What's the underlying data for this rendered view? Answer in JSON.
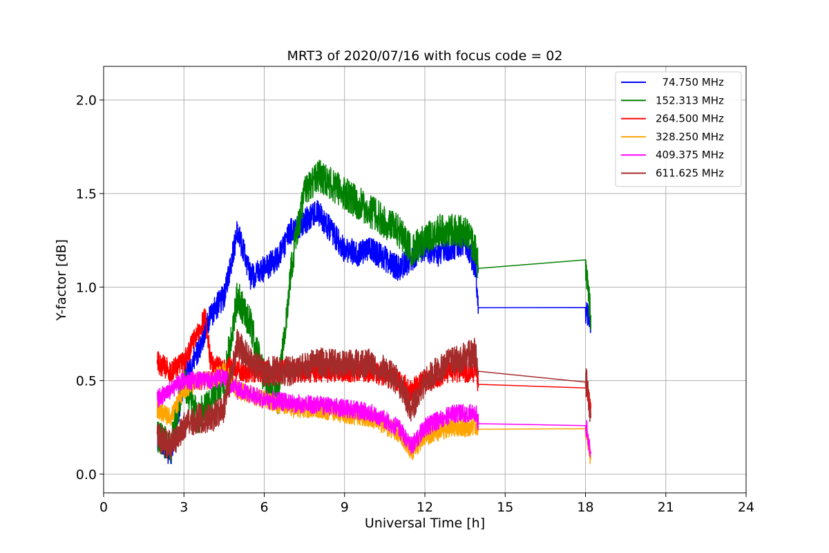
{
  "chart_data": {
    "type": "line",
    "title": "MRT3 of 2020/07/16 with focus code = 02",
    "xlabel": "Universal Time [h]",
    "ylabel": "Y-factor [dB]",
    "xlim": [
      0,
      24
    ],
    "ylim": [
      -0.1,
      2.18
    ],
    "xticks": [
      0,
      3,
      6,
      9,
      12,
      15,
      18,
      21,
      24
    ],
    "xtick_labels": [
      "0",
      "3",
      "6",
      "9",
      "12",
      "15",
      "18",
      "21",
      "24"
    ],
    "yticks": [
      0.0,
      0.5,
      1.0,
      1.5,
      2.0
    ],
    "ytick_labels": [
      "0.0",
      "0.5",
      "1.0",
      "1.5",
      "2.0"
    ],
    "grid": true,
    "legend_position": "top-right",
    "series": [
      {
        "name": "  74.750 MHz",
        "color": "#0000ff",
        "noise": 0.07,
        "x": [
          2.0,
          2.5,
          3.0,
          3.5,
          4.0,
          4.5,
          5.0,
          5.5,
          6.0,
          6.5,
          7.0,
          7.5,
          8.0,
          8.5,
          9.0,
          9.5,
          10.0,
          10.5,
          11.0,
          11.5,
          12.0,
          12.5,
          13.0,
          13.5,
          13.9,
          14.0,
          18.0,
          18.2
        ],
        "y": [
          0.2,
          0.1,
          0.5,
          0.65,
          0.85,
          0.95,
          1.3,
          1.05,
          1.1,
          1.15,
          1.3,
          1.35,
          1.4,
          1.3,
          1.2,
          1.18,
          1.2,
          1.15,
          1.1,
          1.15,
          1.2,
          1.18,
          1.2,
          1.25,
          1.1,
          0.89,
          0.87,
          0.8
        ]
      },
      {
        "name": "152.313 MHz",
        "color": "#008000",
        "noise": 0.09,
        "x": [
          2.0,
          2.5,
          3.0,
          3.5,
          4.0,
          4.5,
          5.0,
          5.5,
          6.0,
          6.5,
          7.0,
          7.5,
          8.0,
          8.5,
          9.0,
          9.5,
          10.0,
          10.5,
          11.0,
          11.5,
          12.0,
          12.5,
          13.0,
          13.5,
          13.9,
          14.0,
          18.0,
          18.2
        ],
        "y": [
          0.2,
          0.15,
          0.5,
          0.3,
          0.4,
          0.5,
          0.95,
          0.8,
          0.5,
          0.4,
          1.1,
          1.5,
          1.6,
          1.55,
          1.5,
          1.45,
          1.4,
          1.35,
          1.3,
          1.2,
          1.25,
          1.3,
          1.3,
          1.3,
          1.2,
          1.1,
          1.1,
          0.85
        ]
      },
      {
        "name": "264.500 MHz",
        "color": "#ff0000",
        "noise": 0.06,
        "x": [
          2.0,
          2.5,
          3.0,
          3.5,
          3.8,
          4.0,
          4.5,
          4.8,
          5.0,
          6.0,
          7.0,
          8.0,
          9.0,
          10.0,
          11.0,
          11.5,
          12.0,
          13.0,
          13.9,
          14.0,
          18.0,
          18.2
        ],
        "y": [
          0.6,
          0.55,
          0.6,
          0.75,
          0.85,
          0.6,
          0.55,
          0.6,
          0.55,
          0.55,
          0.55,
          0.55,
          0.55,
          0.55,
          0.5,
          0.45,
          0.5,
          0.55,
          0.55,
          0.48,
          0.49,
          0.35
        ]
      },
      {
        "name": "328.250 MHz",
        "color": "#ffa500",
        "noise": 0.05,
        "x": [
          2.0,
          2.5,
          3.0,
          3.5,
          4.0,
          4.5,
          5.0,
          6.0,
          7.0,
          8.0,
          9.0,
          10.0,
          11.0,
          11.5,
          12.0,
          13.0,
          13.9,
          14.0,
          18.0,
          18.2
        ],
        "y": [
          0.35,
          0.3,
          0.45,
          0.5,
          0.5,
          0.55,
          0.45,
          0.4,
          0.35,
          0.35,
          0.32,
          0.3,
          0.22,
          0.12,
          0.2,
          0.25,
          0.25,
          0.24,
          0.25,
          0.08
        ]
      },
      {
        "name": "409.375 MHz",
        "color": "#ff00ff",
        "noise": 0.05,
        "x": [
          2.0,
          2.5,
          3.0,
          3.5,
          4.0,
          4.5,
          5.0,
          6.0,
          7.0,
          8.0,
          9.0,
          10.0,
          11.0,
          11.5,
          12.0,
          13.0,
          13.9,
          14.0,
          18.0,
          18.2
        ],
        "y": [
          0.4,
          0.45,
          0.5,
          0.5,
          0.5,
          0.52,
          0.45,
          0.4,
          0.38,
          0.37,
          0.35,
          0.33,
          0.25,
          0.15,
          0.25,
          0.32,
          0.33,
          0.27,
          0.27,
          0.12
        ]
      },
      {
        "name": "611.625 MHz",
        "color": "#a52a2a",
        "noise": 0.08,
        "x": [
          2.0,
          2.5,
          3.0,
          3.5,
          4.0,
          4.5,
          5.0,
          5.5,
          6.0,
          7.0,
          8.0,
          9.0,
          10.0,
          11.0,
          11.5,
          12.0,
          12.5,
          13.0,
          13.9,
          14.0,
          18.0,
          18.2
        ],
        "y": [
          0.2,
          0.15,
          0.25,
          0.3,
          0.3,
          0.35,
          0.7,
          0.6,
          0.55,
          0.55,
          0.6,
          0.58,
          0.6,
          0.5,
          0.35,
          0.5,
          0.55,
          0.6,
          0.65,
          0.55,
          0.54,
          0.3
        ]
      }
    ]
  }
}
